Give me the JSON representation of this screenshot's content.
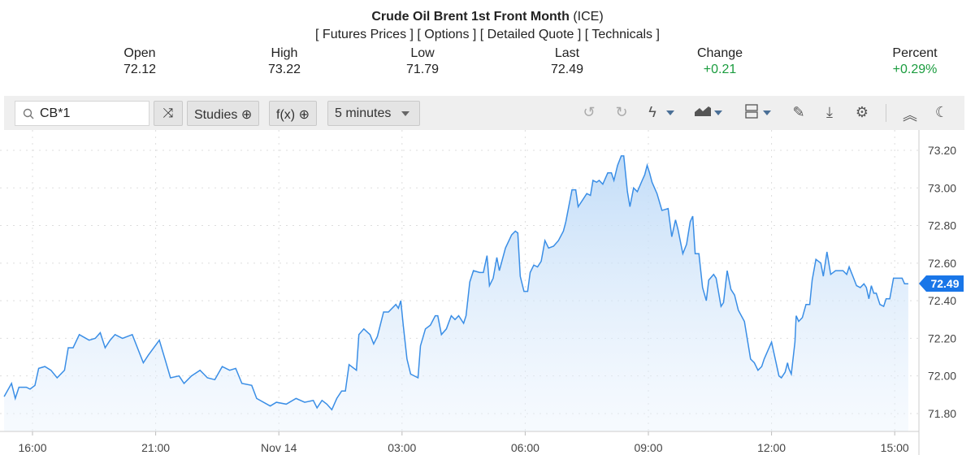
{
  "header": {
    "title": "Crude Oil Brent 1st Front Month",
    "exchange": "(ICE)",
    "links": [
      "[ Futures Prices ]",
      "[ Options ]",
      "[ Detailed Quote ]",
      "[ Technicals ]"
    ],
    "stats": [
      {
        "label": "Open",
        "value": "72.12"
      },
      {
        "label": "High",
        "value": "73.22"
      },
      {
        "label": "Low",
        "value": "71.79"
      },
      {
        "label": "Last",
        "value": "72.49"
      },
      {
        "label": "Change",
        "value": "+0.21"
      },
      {
        "label": "Percent",
        "value": "+0.29%"
      }
    ]
  },
  "toolbar": {
    "symbol": "CB*1",
    "studies": "Studies",
    "fx": "f(x)",
    "interval": "5 minutes"
  },
  "colors": {
    "line": "#3a8ee6",
    "positive": "#1a9c3e",
    "tag": "#1976e8"
  },
  "chart_data": {
    "type": "area",
    "title": "Crude Oil Brent 1st Front Month (ICE)",
    "xlabel": "",
    "ylabel": "",
    "ylim": [
      71.745,
      73.31
    ],
    "yticks": [
      "73.20",
      "73.00",
      "72.80",
      "72.60",
      "72.40",
      "72.20",
      "72.00",
      "71.80"
    ],
    "xticks": [
      "16:00",
      "21:00",
      "Nov 14",
      "03:00",
      "06:00",
      "09:00",
      "12:00",
      "15:00"
    ],
    "x_units": "tick index (0 = 16:00 … 7 = 15:00)",
    "last_label": "72.49",
    "points": [
      [
        -0.23,
        71.89
      ],
      [
        -0.17,
        71.96
      ],
      [
        -0.14,
        71.88
      ],
      [
        -0.11,
        71.94
      ],
      [
        -0.05,
        71.94
      ],
      [
        -0.02,
        71.93
      ],
      [
        0.02,
        71.95
      ],
      [
        0.05,
        72.04
      ],
      [
        0.1,
        72.05
      ],
      [
        0.15,
        72.03
      ],
      [
        0.2,
        71.99
      ],
      [
        0.26,
        72.03
      ],
      [
        0.29,
        72.15
      ],
      [
        0.33,
        72.15
      ],
      [
        0.38,
        72.22
      ],
      [
        0.46,
        72.19
      ],
      [
        0.51,
        72.2
      ],
      [
        0.55,
        72.23
      ],
      [
        0.59,
        72.15
      ],
      [
        0.63,
        72.19
      ],
      [
        0.67,
        72.22
      ],
      [
        0.73,
        72.2
      ],
      [
        0.81,
        72.22
      ],
      [
        0.9,
        72.07
      ],
      [
        0.94,
        72.11
      ],
      [
        1.03,
        72.19
      ],
      [
        1.08,
        72.08
      ],
      [
        1.12,
        71.99
      ],
      [
        1.19,
        72.0
      ],
      [
        1.23,
        71.96
      ],
      [
        1.29,
        72.0
      ],
      [
        1.36,
        72.03
      ],
      [
        1.42,
        71.99
      ],
      [
        1.48,
        71.98
      ],
      [
        1.54,
        72.05
      ],
      [
        1.6,
        72.03
      ],
      [
        1.65,
        72.04
      ],
      [
        1.7,
        71.96
      ],
      [
        1.78,
        71.95
      ],
      [
        1.82,
        71.88
      ],
      [
        1.93,
        71.84
      ],
      [
        1.98,
        71.86
      ],
      [
        2.06,
        71.85
      ],
      [
        2.14,
        71.88
      ],
      [
        2.21,
        71.86
      ],
      [
        2.28,
        71.87
      ],
      [
        2.31,
        71.83
      ],
      [
        2.35,
        71.87
      ],
      [
        2.39,
        71.85
      ],
      [
        2.43,
        71.82
      ],
      [
        2.47,
        71.88
      ],
      [
        2.51,
        71.92
      ],
      [
        2.54,
        71.92
      ],
      [
        2.57,
        72.06
      ],
      [
        2.63,
        72.03
      ],
      [
        2.65,
        72.22
      ],
      [
        2.69,
        72.25
      ],
      [
        2.74,
        72.22
      ],
      [
        2.77,
        72.17
      ],
      [
        2.8,
        72.21
      ],
      [
        2.85,
        72.34
      ],
      [
        2.89,
        72.34
      ],
      [
        2.95,
        72.38
      ],
      [
        2.97,
        72.36
      ],
      [
        2.99,
        72.4
      ],
      [
        3.01,
        72.27
      ],
      [
        3.04,
        72.09
      ],
      [
        3.07,
        72.01
      ],
      [
        3.13,
        71.99
      ],
      [
        3.15,
        72.16
      ],
      [
        3.19,
        72.25
      ],
      [
        3.23,
        72.27
      ],
      [
        3.27,
        72.32
      ],
      [
        3.29,
        72.32
      ],
      [
        3.32,
        72.22
      ],
      [
        3.36,
        72.25
      ],
      [
        3.4,
        72.32
      ],
      [
        3.43,
        72.3
      ],
      [
        3.46,
        72.32
      ],
      [
        3.5,
        72.28
      ],
      [
        3.52,
        72.32
      ],
      [
        3.55,
        72.5
      ],
      [
        3.58,
        72.56
      ],
      [
        3.63,
        72.55
      ],
      [
        3.66,
        72.55
      ],
      [
        3.69,
        72.64
      ],
      [
        3.71,
        72.48
      ],
      [
        3.74,
        72.52
      ],
      [
        3.77,
        72.63
      ],
      [
        3.79,
        72.56
      ],
      [
        3.84,
        72.68
      ],
      [
        3.89,
        72.75
      ],
      [
        3.92,
        72.77
      ],
      [
        3.94,
        72.76
      ],
      [
        3.96,
        72.53
      ],
      [
        3.99,
        72.45
      ],
      [
        4.02,
        72.45
      ],
      [
        4.04,
        72.55
      ],
      [
        4.07,
        72.59
      ],
      [
        4.1,
        72.58
      ],
      [
        4.13,
        72.61
      ],
      [
        4.16,
        72.72
      ],
      [
        4.19,
        72.68
      ],
      [
        4.23,
        72.69
      ],
      [
        4.27,
        72.72
      ],
      [
        4.31,
        72.77
      ],
      [
        4.33,
        72.82
      ],
      [
        4.38,
        72.99
      ],
      [
        4.41,
        72.99
      ],
      [
        4.43,
        72.9
      ],
      [
        4.47,
        72.94
      ],
      [
        4.5,
        72.97
      ],
      [
        4.53,
        72.96
      ],
      [
        4.55,
        73.04
      ],
      [
        4.58,
        73.03
      ],
      [
        4.6,
        73.04
      ],
      [
        4.63,
        73.02
      ],
      [
        4.67,
        73.08
      ],
      [
        4.7,
        73.08
      ],
      [
        4.72,
        73.04
      ],
      [
        4.75,
        73.12
      ],
      [
        4.78,
        73.17
      ],
      [
        4.8,
        73.17
      ],
      [
        4.83,
        72.98
      ],
      [
        4.85,
        72.9
      ],
      [
        4.88,
        73.0
      ],
      [
        4.91,
        72.98
      ],
      [
        4.95,
        73.04
      ],
      [
        4.97,
        73.07
      ],
      [
        4.99,
        73.12
      ],
      [
        5.01,
        73.08
      ],
      [
        5.03,
        73.03
      ],
      [
        5.07,
        72.97
      ],
      [
        5.11,
        72.88
      ],
      [
        5.16,
        72.89
      ],
      [
        5.19,
        72.74
      ],
      [
        5.22,
        72.83
      ],
      [
        5.24,
        72.78
      ],
      [
        5.28,
        72.65
      ],
      [
        5.31,
        72.7
      ],
      [
        5.34,
        72.82
      ],
      [
        5.36,
        72.85
      ],
      [
        5.38,
        72.65
      ],
      [
        5.41,
        72.65
      ],
      [
        5.44,
        72.47
      ],
      [
        5.47,
        72.4
      ],
      [
        5.49,
        72.51
      ],
      [
        5.53,
        72.54
      ],
      [
        5.55,
        72.52
      ],
      [
        5.59,
        72.37
      ],
      [
        5.61,
        72.39
      ],
      [
        5.64,
        72.56
      ],
      [
        5.67,
        72.46
      ],
      [
        5.7,
        72.43
      ],
      [
        5.73,
        72.35
      ],
      [
        5.78,
        72.29
      ],
      [
        5.83,
        72.09
      ],
      [
        5.86,
        72.07
      ],
      [
        5.89,
        72.03
      ],
      [
        5.92,
        72.05
      ],
      [
        5.94,
        72.09
      ],
      [
        6.0,
        72.18
      ],
      [
        6.06,
        72.0
      ],
      [
        6.08,
        71.99
      ],
      [
        6.11,
        72.02
      ],
      [
        6.13,
        72.07
      ],
      [
        6.14,
        72.04
      ],
      [
        6.16,
        72.01
      ],
      [
        6.19,
        72.18
      ],
      [
        6.2,
        72.32
      ],
      [
        6.22,
        72.29
      ],
      [
        6.25,
        72.31
      ],
      [
        6.28,
        72.38
      ],
      [
        6.31,
        72.38
      ],
      [
        6.33,
        72.51
      ],
      [
        6.36,
        72.62
      ],
      [
        6.4,
        72.6
      ],
      [
        6.42,
        72.53
      ],
      [
        6.45,
        72.66
      ],
      [
        6.48,
        72.54
      ],
      [
        6.52,
        72.56
      ],
      [
        6.54,
        72.56
      ],
      [
        6.58,
        72.56
      ],
      [
        6.61,
        72.54
      ],
      [
        6.63,
        72.58
      ],
      [
        6.66,
        72.53
      ],
      [
        6.69,
        72.48
      ],
      [
        6.72,
        72.47
      ],
      [
        6.75,
        72.49
      ],
      [
        6.77,
        72.47
      ],
      [
        6.79,
        72.41
      ],
      [
        6.81,
        72.48
      ],
      [
        6.83,
        72.44
      ],
      [
        6.85,
        72.44
      ],
      [
        6.88,
        72.38
      ],
      [
        6.91,
        72.37
      ],
      [
        6.93,
        72.41
      ],
      [
        6.96,
        72.41
      ],
      [
        6.99,
        72.52
      ],
      [
        7.06,
        72.52
      ],
      [
        7.08,
        72.49
      ],
      [
        7.11,
        72.49
      ]
    ]
  }
}
